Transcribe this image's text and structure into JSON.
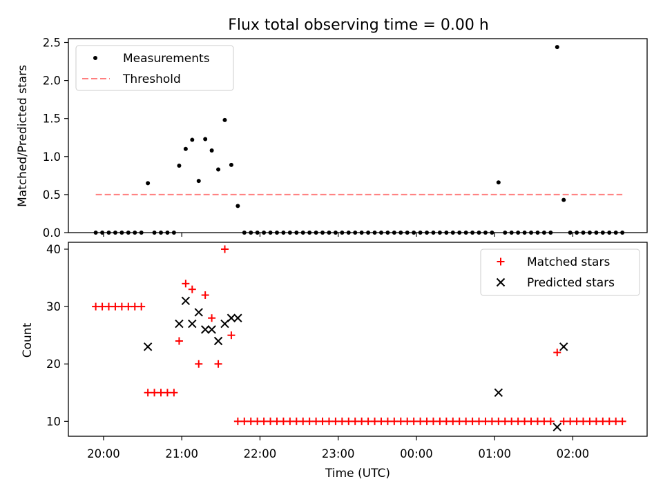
{
  "chart_data": [
    {
      "type": "scatter",
      "title": "Flux total observing time = 0.00 h",
      "xlabel": "",
      "ylabel": "Matched/Predicted stars",
      "ylim": [
        0,
        2.55
      ],
      "yticks": [
        "0.0",
        "0.5",
        "1.0",
        "1.5",
        "2.0",
        "2.5"
      ],
      "legend_position": "upper-left",
      "series": [
        {
          "name": "Measurements",
          "kind": "points",
          "color": "#000000",
          "points": [
            [
              "19:54",
              0
            ],
            [
              "19:59",
              0
            ],
            [
              "20:04",
              0
            ],
            [
              "20:09",
              0
            ],
            [
              "20:14",
              0
            ],
            [
              "20:19",
              0
            ],
            [
              "20:24",
              0
            ],
            [
              "20:29",
              0
            ],
            [
              "20:34",
              0.65
            ],
            [
              "20:39",
              0
            ],
            [
              "20:44",
              0
            ],
            [
              "20:49",
              0
            ],
            [
              "20:54",
              0
            ],
            [
              "20:58",
              0.88
            ],
            [
              "21:03",
              1.1
            ],
            [
              "21:08",
              1.22
            ],
            [
              "21:13",
              0.68
            ],
            [
              "21:18",
              1.23
            ],
            [
              "21:23",
              1.08
            ],
            [
              "21:28",
              0.83
            ],
            [
              "21:33",
              1.48
            ],
            [
              "21:38",
              0.89
            ],
            [
              "21:43",
              0.35
            ],
            [
              "21:48",
              0
            ],
            [
              "21:53",
              0
            ],
            [
              "21:58",
              0
            ],
            [
              "22:03",
              0
            ],
            [
              "22:08",
              0
            ],
            [
              "22:13",
              0
            ],
            [
              "22:18",
              0
            ],
            [
              "22:23",
              0
            ],
            [
              "22:28",
              0
            ],
            [
              "22:33",
              0
            ],
            [
              "22:38",
              0
            ],
            [
              "22:43",
              0
            ],
            [
              "22:48",
              0
            ],
            [
              "22:53",
              0
            ],
            [
              "22:58",
              0
            ],
            [
              "23:03",
              0
            ],
            [
              "23:08",
              0
            ],
            [
              "23:13",
              0
            ],
            [
              "23:18",
              0
            ],
            [
              "23:23",
              0
            ],
            [
              "23:28",
              0
            ],
            [
              "23:33",
              0
            ],
            [
              "23:38",
              0
            ],
            [
              "23:43",
              0
            ],
            [
              "23:48",
              0
            ],
            [
              "23:53",
              0
            ],
            [
              "23:58",
              0
            ],
            [
              "00:03",
              0
            ],
            [
              "00:08",
              0
            ],
            [
              "00:13",
              0
            ],
            [
              "00:18",
              0
            ],
            [
              "00:23",
              0
            ],
            [
              "00:28",
              0
            ],
            [
              "00:33",
              0
            ],
            [
              "00:38",
              0
            ],
            [
              "00:43",
              0
            ],
            [
              "00:48",
              0
            ],
            [
              "00:53",
              0
            ],
            [
              "00:58",
              0
            ],
            [
              "01:03",
              0.66
            ],
            [
              "01:08",
              0
            ],
            [
              "01:13",
              0
            ],
            [
              "01:18",
              0
            ],
            [
              "01:23",
              0
            ],
            [
              "01:28",
              0
            ],
            [
              "01:33",
              0
            ],
            [
              "01:38",
              0
            ],
            [
              "01:43",
              0
            ],
            [
              "01:48",
              2.44
            ],
            [
              "01:53",
              0.43
            ],
            [
              "01:58",
              0
            ],
            [
              "02:03",
              0
            ],
            [
              "02:08",
              0
            ],
            [
              "02:13",
              0
            ],
            [
              "02:18",
              0
            ],
            [
              "02:23",
              0
            ],
            [
              "02:28",
              0
            ],
            [
              "02:33",
              0
            ],
            [
              "02:38",
              0
            ]
          ]
        },
        {
          "name": "Threshold",
          "kind": "dashed-line",
          "color": "#ff7f7f",
          "points": [
            [
              "19:54",
              0.5
            ],
            [
              "02:38",
              0.5
            ]
          ]
        }
      ]
    },
    {
      "type": "scatter",
      "title": "",
      "xlabel": "Time (UTC)",
      "ylabel": "Count",
      "ylim": [
        7.4,
        41.2
      ],
      "yticks": [
        "10",
        "20",
        "30",
        "40"
      ],
      "xticks": [
        "20:00",
        "21:00",
        "22:00",
        "23:00",
        "00:00",
        "01:00",
        "02:00"
      ],
      "xlim": [
        "19:33",
        "02:57"
      ],
      "legend_position": "upper-right",
      "series": [
        {
          "name": "Matched stars",
          "kind": "plus",
          "color": "#ff0000",
          "points": [
            [
              "19:54",
              30
            ],
            [
              "19:59",
              30
            ],
            [
              "20:04",
              30
            ],
            [
              "20:09",
              30
            ],
            [
              "20:14",
              30
            ],
            [
              "20:19",
              30
            ],
            [
              "20:24",
              30
            ],
            [
              "20:29",
              30
            ],
            [
              "20:34",
              15
            ],
            [
              "20:39",
              15
            ],
            [
              "20:44",
              15
            ],
            [
              "20:49",
              15
            ],
            [
              "20:54",
              15
            ],
            [
              "20:58",
              24
            ],
            [
              "21:03",
              34
            ],
            [
              "21:08",
              33
            ],
            [
              "21:13",
              20
            ],
            [
              "21:18",
              32
            ],
            [
              "21:23",
              28
            ],
            [
              "21:28",
              20
            ],
            [
              "21:33",
              40
            ],
            [
              "21:38",
              25
            ],
            [
              "21:43",
              10
            ],
            [
              "21:48",
              10
            ],
            [
              "21:53",
              10
            ],
            [
              "21:58",
              10
            ],
            [
              "22:03",
              10
            ],
            [
              "22:08",
              10
            ],
            [
              "22:13",
              10
            ],
            [
              "22:18",
              10
            ],
            [
              "22:23",
              10
            ],
            [
              "22:28",
              10
            ],
            [
              "22:33",
              10
            ],
            [
              "22:38",
              10
            ],
            [
              "22:43",
              10
            ],
            [
              "22:48",
              10
            ],
            [
              "22:53",
              10
            ],
            [
              "22:58",
              10
            ],
            [
              "23:03",
              10
            ],
            [
              "23:08",
              10
            ],
            [
              "23:13",
              10
            ],
            [
              "23:18",
              10
            ],
            [
              "23:23",
              10
            ],
            [
              "23:28",
              10
            ],
            [
              "23:33",
              10
            ],
            [
              "23:38",
              10
            ],
            [
              "23:43",
              10
            ],
            [
              "23:48",
              10
            ],
            [
              "23:53",
              10
            ],
            [
              "23:58",
              10
            ],
            [
              "00:03",
              10
            ],
            [
              "00:08",
              10
            ],
            [
              "00:13",
              10
            ],
            [
              "00:18",
              10
            ],
            [
              "00:23",
              10
            ],
            [
              "00:28",
              10
            ],
            [
              "00:33",
              10
            ],
            [
              "00:38",
              10
            ],
            [
              "00:43",
              10
            ],
            [
              "00:48",
              10
            ],
            [
              "00:53",
              10
            ],
            [
              "00:58",
              10
            ],
            [
              "01:03",
              10
            ],
            [
              "01:08",
              10
            ],
            [
              "01:13",
              10
            ],
            [
              "01:18",
              10
            ],
            [
              "01:23",
              10
            ],
            [
              "01:28",
              10
            ],
            [
              "01:33",
              10
            ],
            [
              "01:38",
              10
            ],
            [
              "01:43",
              10
            ],
            [
              "01:48",
              22
            ],
            [
              "01:53",
              10
            ],
            [
              "01:58",
              10
            ],
            [
              "02:03",
              10
            ],
            [
              "02:08",
              10
            ],
            [
              "02:13",
              10
            ],
            [
              "02:18",
              10
            ],
            [
              "02:23",
              10
            ],
            [
              "02:28",
              10
            ],
            [
              "02:33",
              10
            ],
            [
              "02:38",
              10
            ]
          ]
        },
        {
          "name": "Predicted stars",
          "kind": "x",
          "color": "#000000",
          "points": [
            [
              "20:34",
              23
            ],
            [
              "20:58",
              27
            ],
            [
              "21:03",
              31
            ],
            [
              "21:08",
              27
            ],
            [
              "21:13",
              29
            ],
            [
              "21:18",
              26
            ],
            [
              "21:23",
              26
            ],
            [
              "21:28",
              24
            ],
            [
              "21:33",
              27
            ],
            [
              "21:38",
              28
            ],
            [
              "21:43",
              28
            ],
            [
              "01:03",
              15
            ],
            [
              "01:48",
              9
            ],
            [
              "01:53",
              23
            ]
          ]
        }
      ]
    }
  ]
}
